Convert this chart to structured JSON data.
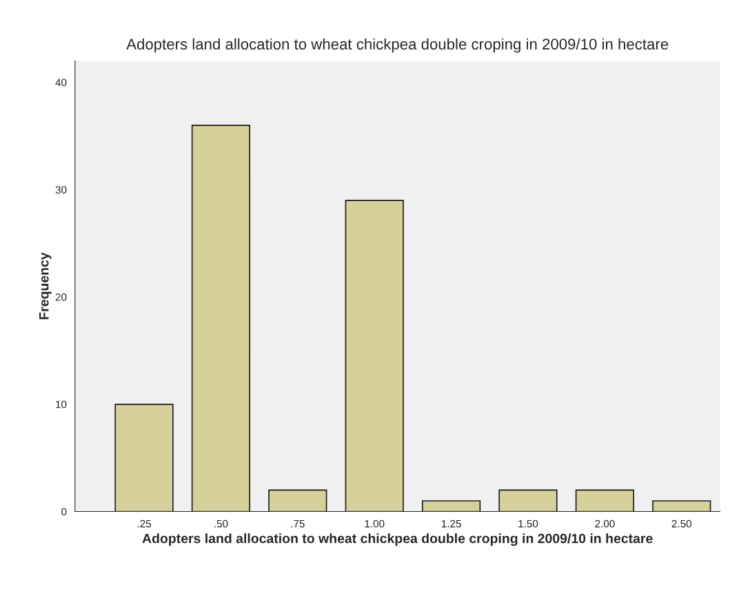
{
  "chart_data": {
    "type": "bar",
    "title": "Adopters land allocation to wheat chickpea double croping in 2009/10 in hectare",
    "xlabel": "Adopters land allocation to wheat chickpea double croping in 2009/10 in hectare",
    "ylabel": "Frequency",
    "categories": [
      ".25",
      ".50",
      ".75",
      "1.00",
      "1.25",
      "1.50",
      "2.00",
      "2.50"
    ],
    "values": [
      10,
      36,
      2,
      29,
      1,
      2,
      2,
      1
    ],
    "color": "#d6d19b",
    "ylim": [
      0,
      42
    ],
    "yticks": [
      0,
      10,
      20,
      30,
      40
    ],
    "grid": false
  }
}
